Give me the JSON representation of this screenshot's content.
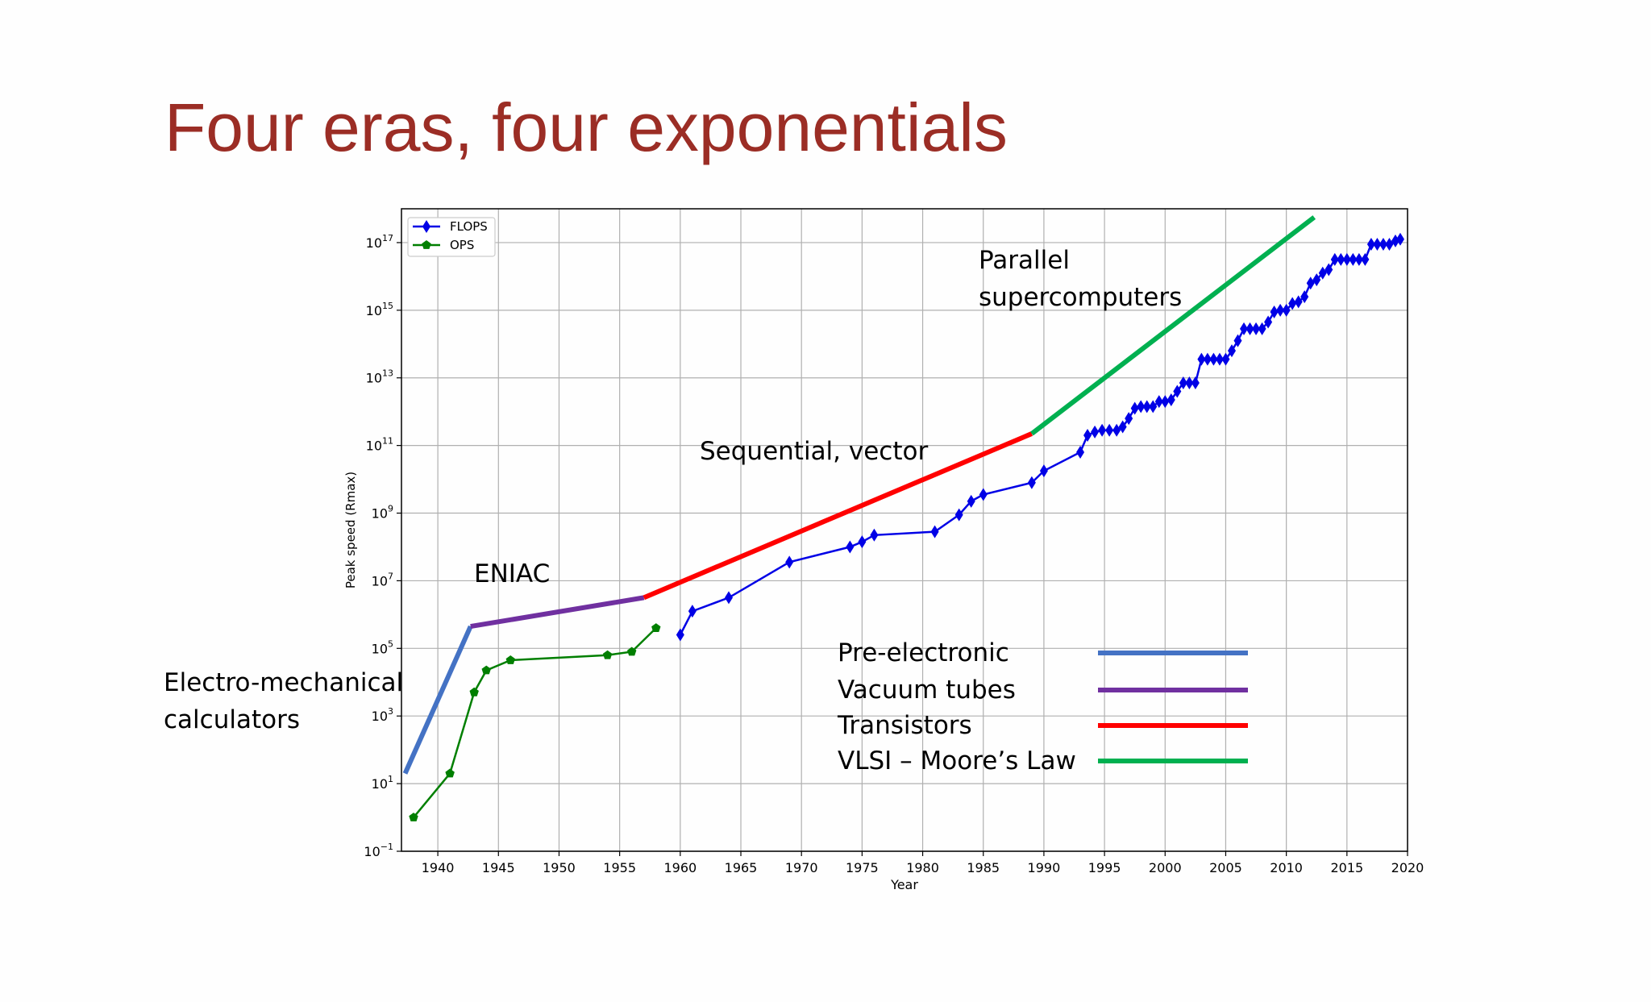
{
  "slide": {
    "title": "Four eras, four exponentials"
  },
  "chart_data": {
    "type": "line",
    "xlabel": "Year",
    "ylabel": "Peak speed (Rmax)",
    "xlim": [
      1937,
      2020
    ],
    "ylim_log10": [
      -1,
      18
    ],
    "y_scale": "log",
    "x_ticks": [
      1940,
      1945,
      1950,
      1955,
      1960,
      1965,
      1970,
      1975,
      1980,
      1985,
      1990,
      1995,
      2000,
      2005,
      2010,
      2015,
      2020
    ],
    "y_ticks": [
      {
        "base": "10",
        "exp": "−1",
        "log10": -1
      },
      {
        "base": "10",
        "exp": "1",
        "log10": 1
      },
      {
        "base": "10",
        "exp": "3",
        "log10": 3
      },
      {
        "base": "10",
        "exp": "5",
        "log10": 5
      },
      {
        "base": "10",
        "exp": "7",
        "log10": 7
      },
      {
        "base": "10",
        "exp": "9",
        "log10": 9
      },
      {
        "base": "10",
        "exp": "11",
        "log10": 11
      },
      {
        "base": "10",
        "exp": "13",
        "log10": 13
      },
      {
        "base": "10",
        "exp": "15",
        "log10": 15
      },
      {
        "base": "10",
        "exp": "17",
        "log10": 17
      }
    ],
    "grid": true,
    "legend_position": "top-left",
    "series": [
      {
        "name": "FLOPS",
        "color": "#0000e6",
        "marker": "diamond",
        "points": [
          [
            1960,
            5.4
          ],
          [
            1961,
            6.1
          ],
          [
            1964,
            6.5
          ],
          [
            1969,
            7.55
          ],
          [
            1974,
            8.0
          ],
          [
            1975,
            8.15
          ],
          [
            1976,
            8.35
          ],
          [
            1981,
            8.45
          ],
          [
            1983,
            8.95
          ],
          [
            1984,
            9.35
          ],
          [
            1985,
            9.55
          ],
          [
            1989,
            9.9
          ],
          [
            1990,
            10.25
          ],
          [
            1993,
            10.8
          ],
          [
            1993.6,
            11.3
          ],
          [
            1994.2,
            11.4
          ],
          [
            1994.8,
            11.45
          ],
          [
            1995.4,
            11.45
          ],
          [
            1996,
            11.45
          ],
          [
            1996.5,
            11.55
          ],
          [
            1997,
            11.8
          ],
          [
            1997.5,
            12.1
          ],
          [
            1998,
            12.15
          ],
          [
            1998.5,
            12.15
          ],
          [
            1999,
            12.15
          ],
          [
            1999.5,
            12.3
          ],
          [
            2000,
            12.3
          ],
          [
            2000.5,
            12.35
          ],
          [
            2001,
            12.6
          ],
          [
            2001.5,
            12.85
          ],
          [
            2002,
            12.85
          ],
          [
            2002.5,
            12.85
          ],
          [
            2003,
            13.55
          ],
          [
            2003.5,
            13.55
          ],
          [
            2004,
            13.55
          ],
          [
            2004.5,
            13.55
          ],
          [
            2005,
            13.55
          ],
          [
            2005.5,
            13.8
          ],
          [
            2006,
            14.1
          ],
          [
            2006.5,
            14.45
          ],
          [
            2007,
            14.45
          ],
          [
            2007.5,
            14.45
          ],
          [
            2008,
            14.45
          ],
          [
            2008.5,
            14.65
          ],
          [
            2009,
            14.95
          ],
          [
            2009.5,
            15.0
          ],
          [
            2010,
            15.0
          ],
          [
            2010.5,
            15.2
          ],
          [
            2011,
            15.25
          ],
          [
            2011.5,
            15.4
          ],
          [
            2012,
            15.8
          ],
          [
            2012.5,
            15.9
          ],
          [
            2013,
            16.1
          ],
          [
            2013.5,
            16.2
          ],
          [
            2014,
            16.5
          ],
          [
            2014.5,
            16.5
          ],
          [
            2015,
            16.5
          ],
          [
            2015.5,
            16.5
          ],
          [
            2016,
            16.5
          ],
          [
            2016.5,
            16.5
          ],
          [
            2017,
            16.95
          ],
          [
            2017.5,
            16.95
          ],
          [
            2018,
            16.95
          ],
          [
            2018.5,
            16.95
          ],
          [
            2019,
            17.05
          ],
          [
            2019.4,
            17.1
          ]
        ]
      },
      {
        "name": "OPS",
        "color": "#007f00",
        "marker": "pentagon",
        "points": [
          [
            1938,
            0.0
          ],
          [
            1941,
            1.3
          ],
          [
            1943,
            3.7
          ],
          [
            1944,
            4.35
          ],
          [
            1946,
            4.65
          ],
          [
            1954,
            4.8
          ],
          [
            1956,
            4.9
          ],
          [
            1958,
            5.6
          ]
        ]
      }
    ],
    "eras": [
      {
        "label": "Pre-electronic",
        "color": "#4472c4",
        "start": [
          1937.3,
          1.3
        ],
        "end": [
          1942.7,
          5.65
        ]
      },
      {
        "label": "Vacuum tubes",
        "color": "#7030a0",
        "start": [
          1942.7,
          5.65
        ],
        "end": [
          1957.0,
          6.5
        ]
      },
      {
        "label": "Transistors",
        "color": "#ff0000",
        "start": [
          1957.0,
          6.5
        ],
        "end": [
          1989.0,
          11.35
        ]
      },
      {
        "label": "VLSI – Moore’s Law",
        "color": "#00b050",
        "start": [
          1989.0,
          11.35
        ],
        "end": [
          2012.3,
          17.75
        ]
      }
    ],
    "annotations": [
      {
        "label": "Electro-mechanical"
      },
      {
        "label": "calculators"
      },
      {
        "label": "ENIAC"
      },
      {
        "label": "Sequential, vector"
      },
      {
        "label": "Parallel"
      },
      {
        "label": "supercomputers"
      }
    ]
  }
}
